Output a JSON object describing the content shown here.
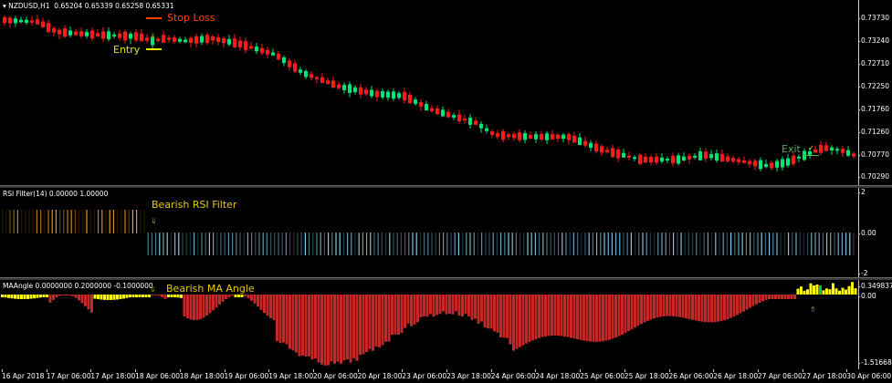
{
  "main_chart": {
    "symbol_label": "NZDUSD,H1",
    "ohlc": "0.65204 0.65339 0.65258 0.65331",
    "price_scale": [
      "0.73730",
      "0.73240",
      "0.72710",
      "0.72250",
      "0.71760",
      "0.71260",
      "0.70770",
      "0.70290"
    ],
    "annotations": {
      "stop_loss": "Stop Loss",
      "entry": "Entry",
      "exit": "Exit"
    },
    "colors": {
      "bull": "#00e676",
      "bear": "#ff1a1a",
      "stop_loss": "#ff4500",
      "entry": "#e8e800",
      "exit": "#4caf50"
    }
  },
  "rsi_panel": {
    "label": "RSI Filter(14) 0.00000 1.00000",
    "annotation": "Bearish RSI Filter",
    "scale": [
      "2",
      "0.00",
      "-2"
    ],
    "colors": {
      "bullish": "#ffa726",
      "bearish": "#87ceeb"
    }
  },
  "ma_panel": {
    "label": "MAAngle 0.0000000 0.2000000 -0.1000000",
    "annotation": "Bearish MA Angle",
    "scale": [
      "0.3498375",
      "0.00",
      "-1.5166872"
    ],
    "colors": {
      "positive": "#ffff00",
      "negative": "#c62828",
      "strong": "#00c853"
    }
  },
  "time_axis": [
    "16 Apr 2018",
    "17 Apr 06:00",
    "17 Apr 18:00",
    "18 Apr 06:00",
    "18 Apr 18:00",
    "19 Apr 06:00",
    "19 Apr 18:00",
    "20 Apr 06:00",
    "20 Apr 18:00",
    "23 Apr 06:00",
    "23 Apr 18:00",
    "24 Apr 06:00",
    "24 Apr 18:00",
    "25 Apr 06:00",
    "25 Apr 18:00",
    "26 Apr 06:00",
    "26 Apr 18:00",
    "27 Apr 06:00",
    "27 Apr 18:00",
    "30 Apr 06:00"
  ]
}
